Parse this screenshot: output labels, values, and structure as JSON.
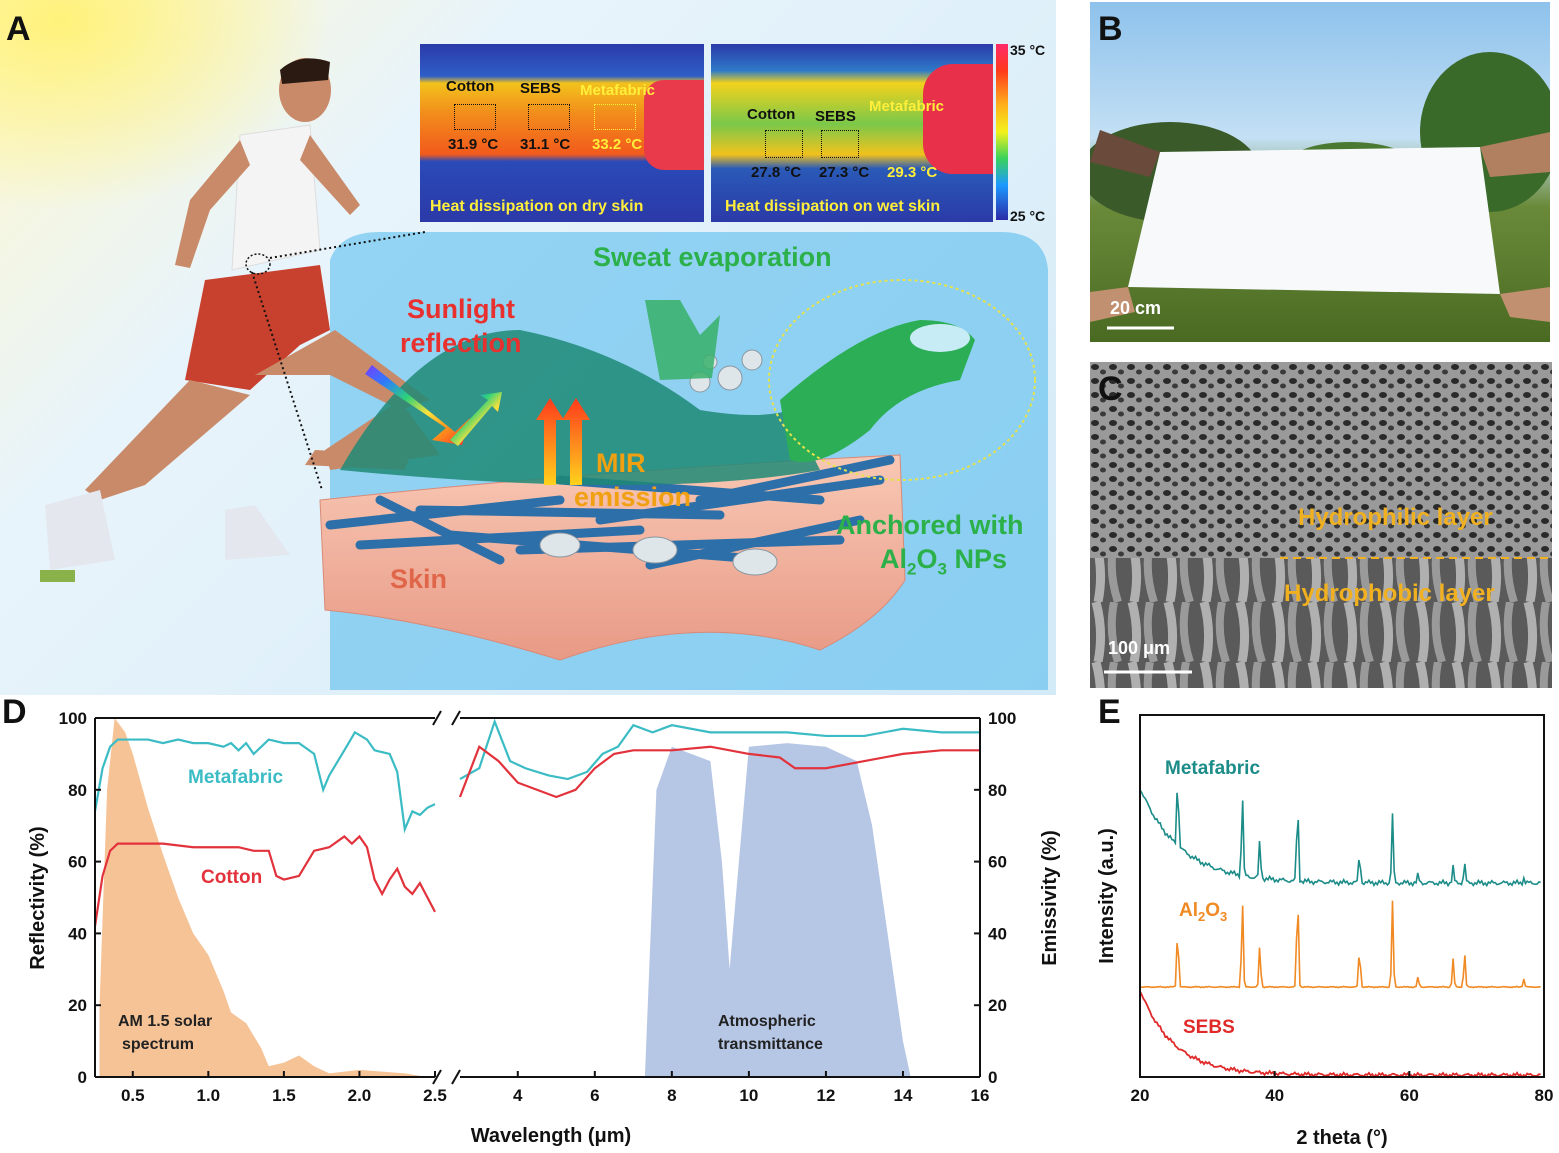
{
  "panels": {
    "a": "A",
    "b": "B",
    "c": "C",
    "d": "D",
    "e": "E"
  },
  "panel_a": {
    "thermal_dry": {
      "labels": [
        "Cotton",
        "SEBS",
        "Metafabric"
      ],
      "temps": [
        "31.9 °C",
        "31.1 °C",
        "33.2 °C"
      ],
      "caption": "Heat dissipation on dry skin"
    },
    "thermal_wet": {
      "labels": [
        "Cotton",
        "SEBS",
        "Metafabric"
      ],
      "temps": [
        "27.8 °C",
        "27.3 °C",
        "29.3 °C"
      ],
      "caption": "Heat dissipation on wet skin"
    },
    "colorbar": {
      "max": "35 °C",
      "min": "25 °C"
    },
    "labels": {
      "sweat": "Sweat evaporation",
      "sunlight_1": "Sunlight",
      "sunlight_2": "reflection",
      "mir_1": "MIR",
      "mir_2": "emission",
      "anchored_1": "Anchored with",
      "anchored_2a": "Al",
      "anchored_2b": "2",
      "anchored_2c": "O",
      "anchored_2d": "3",
      "anchored_2e": " NPs",
      "skin": "Skin"
    },
    "colors": {
      "red": "#e8312f",
      "green": "#2bb04a",
      "orange": "#f0a010",
      "thermal_text": "#ffef3a"
    }
  },
  "panel_b": {
    "scale": "20 cm"
  },
  "panel_c": {
    "scale": "100 μm",
    "upper": "Hydrophilic layer",
    "lower": "Hydrophobic layer"
  },
  "chart_data": [
    {
      "type": "line",
      "panel": "D",
      "xlabel": "Wavelength  (μm)",
      "ylabel_left": "Reflectivity (%)",
      "ylabel_right": "Emissivity (%)",
      "ylim": [
        0,
        100
      ],
      "y_ticks": [
        "0",
        "20",
        "40",
        "60",
        "80",
        "100"
      ],
      "x_ticks_left": [
        "0.5",
        "1.0",
        "1.5",
        "2.0",
        "2.5"
      ],
      "x_ticks_right": [
        "4",
        "6",
        "8",
        "10",
        "12",
        "14",
        "16"
      ],
      "xlim_left": [
        0.25,
        2.5
      ],
      "xlim_right": [
        2.5,
        16
      ],
      "annotations": {
        "solar_1": "AM 1.5 solar",
        "solar_2": "spectrum",
        "atm_1": "Atmospheric",
        "atm_2": "transmittance"
      },
      "series": [
        {
          "name": "Metafabric",
          "color": "#3bbcc4",
          "left": [
            [
              0.25,
              74
            ],
            [
              0.3,
              86
            ],
            [
              0.35,
              92
            ],
            [
              0.4,
              94
            ],
            [
              0.5,
              94
            ],
            [
              0.6,
              94
            ],
            [
              0.7,
              93
            ],
            [
              0.8,
              94
            ],
            [
              0.9,
              93
            ],
            [
              1.0,
              93
            ],
            [
              1.1,
              92
            ],
            [
              1.15,
              93
            ],
            [
              1.2,
              91
            ],
            [
              1.25,
              93
            ],
            [
              1.3,
              90
            ],
            [
              1.4,
              94
            ],
            [
              1.5,
              93
            ],
            [
              1.6,
              93
            ],
            [
              1.7,
              90
            ],
            [
              1.76,
              80
            ],
            [
              1.8,
              84
            ],
            [
              1.9,
              91
            ],
            [
              1.97,
              96
            ],
            [
              2.05,
              94
            ],
            [
              2.1,
              91
            ],
            [
              2.2,
              90
            ],
            [
              2.25,
              85
            ],
            [
              2.3,
              69
            ],
            [
              2.35,
              74
            ],
            [
              2.4,
              73
            ],
            [
              2.45,
              75
            ],
            [
              2.5,
              76
            ]
          ],
          "right": [
            [
              2.5,
              83
            ],
            [
              3.0,
              86
            ],
            [
              3.4,
              99
            ],
            [
              3.8,
              88
            ],
            [
              4.2,
              86
            ],
            [
              4.8,
              84
            ],
            [
              5.3,
              83
            ],
            [
              5.8,
              85
            ],
            [
              6.2,
              90
            ],
            [
              6.6,
              92
            ],
            [
              7.0,
              98
            ],
            [
              7.5,
              96
            ],
            [
              8.0,
              98
            ],
            [
              9.0,
              96
            ],
            [
              10,
              96
            ],
            [
              11,
              96
            ],
            [
              12,
              95
            ],
            [
              13,
              95
            ],
            [
              14,
              97
            ],
            [
              15,
              96
            ],
            [
              16,
              96
            ]
          ]
        },
        {
          "name": "Cotton",
          "color": "#e2323c",
          "left": [
            [
              0.25,
              42
            ],
            [
              0.3,
              56
            ],
            [
              0.35,
              63
            ],
            [
              0.4,
              65
            ],
            [
              0.5,
              65
            ],
            [
              0.7,
              65
            ],
            [
              0.9,
              64
            ],
            [
              1.0,
              64
            ],
            [
              1.2,
              64
            ],
            [
              1.3,
              63
            ],
            [
              1.4,
              63
            ],
            [
              1.45,
              56
            ],
            [
              1.5,
              55
            ],
            [
              1.6,
              56
            ],
            [
              1.7,
              63
            ],
            [
              1.8,
              64
            ],
            [
              1.9,
              67
            ],
            [
              1.95,
              65
            ],
            [
              2.0,
              67
            ],
            [
              2.05,
              64
            ],
            [
              2.1,
              55
            ],
            [
              2.15,
              51
            ],
            [
              2.2,
              55
            ],
            [
              2.25,
              58
            ],
            [
              2.3,
              53
            ],
            [
              2.35,
              51
            ],
            [
              2.4,
              54
            ],
            [
              2.45,
              50
            ],
            [
              2.5,
              46
            ]
          ],
          "right": [
            [
              2.5,
              78
            ],
            [
              3.0,
              92
            ],
            [
              3.5,
              88
            ],
            [
              4.0,
              82
            ],
            [
              5.0,
              78
            ],
            [
              5.5,
              80
            ],
            [
              6.0,
              86
            ],
            [
              6.5,
              90
            ],
            [
              7.0,
              91
            ],
            [
              8,
              91
            ],
            [
              9,
              92
            ],
            [
              10,
              90
            ],
            [
              10.8,
              89
            ],
            [
              11.2,
              86
            ],
            [
              12,
              86
            ],
            [
              13,
              88
            ],
            [
              14,
              90
            ],
            [
              15,
              91
            ],
            [
              16,
              91
            ]
          ]
        }
      ]
    },
    {
      "type": "line",
      "panel": "E",
      "xlabel": "2 theta (°)",
      "ylabel": "Intensity (a.u.)",
      "xlim": [
        20,
        80
      ],
      "x_ticks": [
        "20",
        "40",
        "60",
        "80"
      ],
      "series_labels": {
        "metafabric": "Metafabric",
        "al_a": "Al",
        "al_b": "2",
        "al_c": "O",
        "al_d": "3",
        "sebs": "SEBS"
      },
      "series": [
        {
          "name": "Metafabric",
          "color": "#1b8c88",
          "peaks": [
            25.6,
            35.2,
            37.8,
            43.4,
            52.6,
            57.5,
            61.3,
            66.5,
            68.2,
            77.0
          ]
        },
        {
          "name": "Al2O3",
          "color": "#f08a24",
          "peaks": [
            25.6,
            35.2,
            37.8,
            43.4,
            52.6,
            57.5,
            61.3,
            66.5,
            68.2,
            77.0
          ]
        },
        {
          "name": "SEBS",
          "color": "#e02a2a",
          "peaks": []
        }
      ]
    }
  ]
}
